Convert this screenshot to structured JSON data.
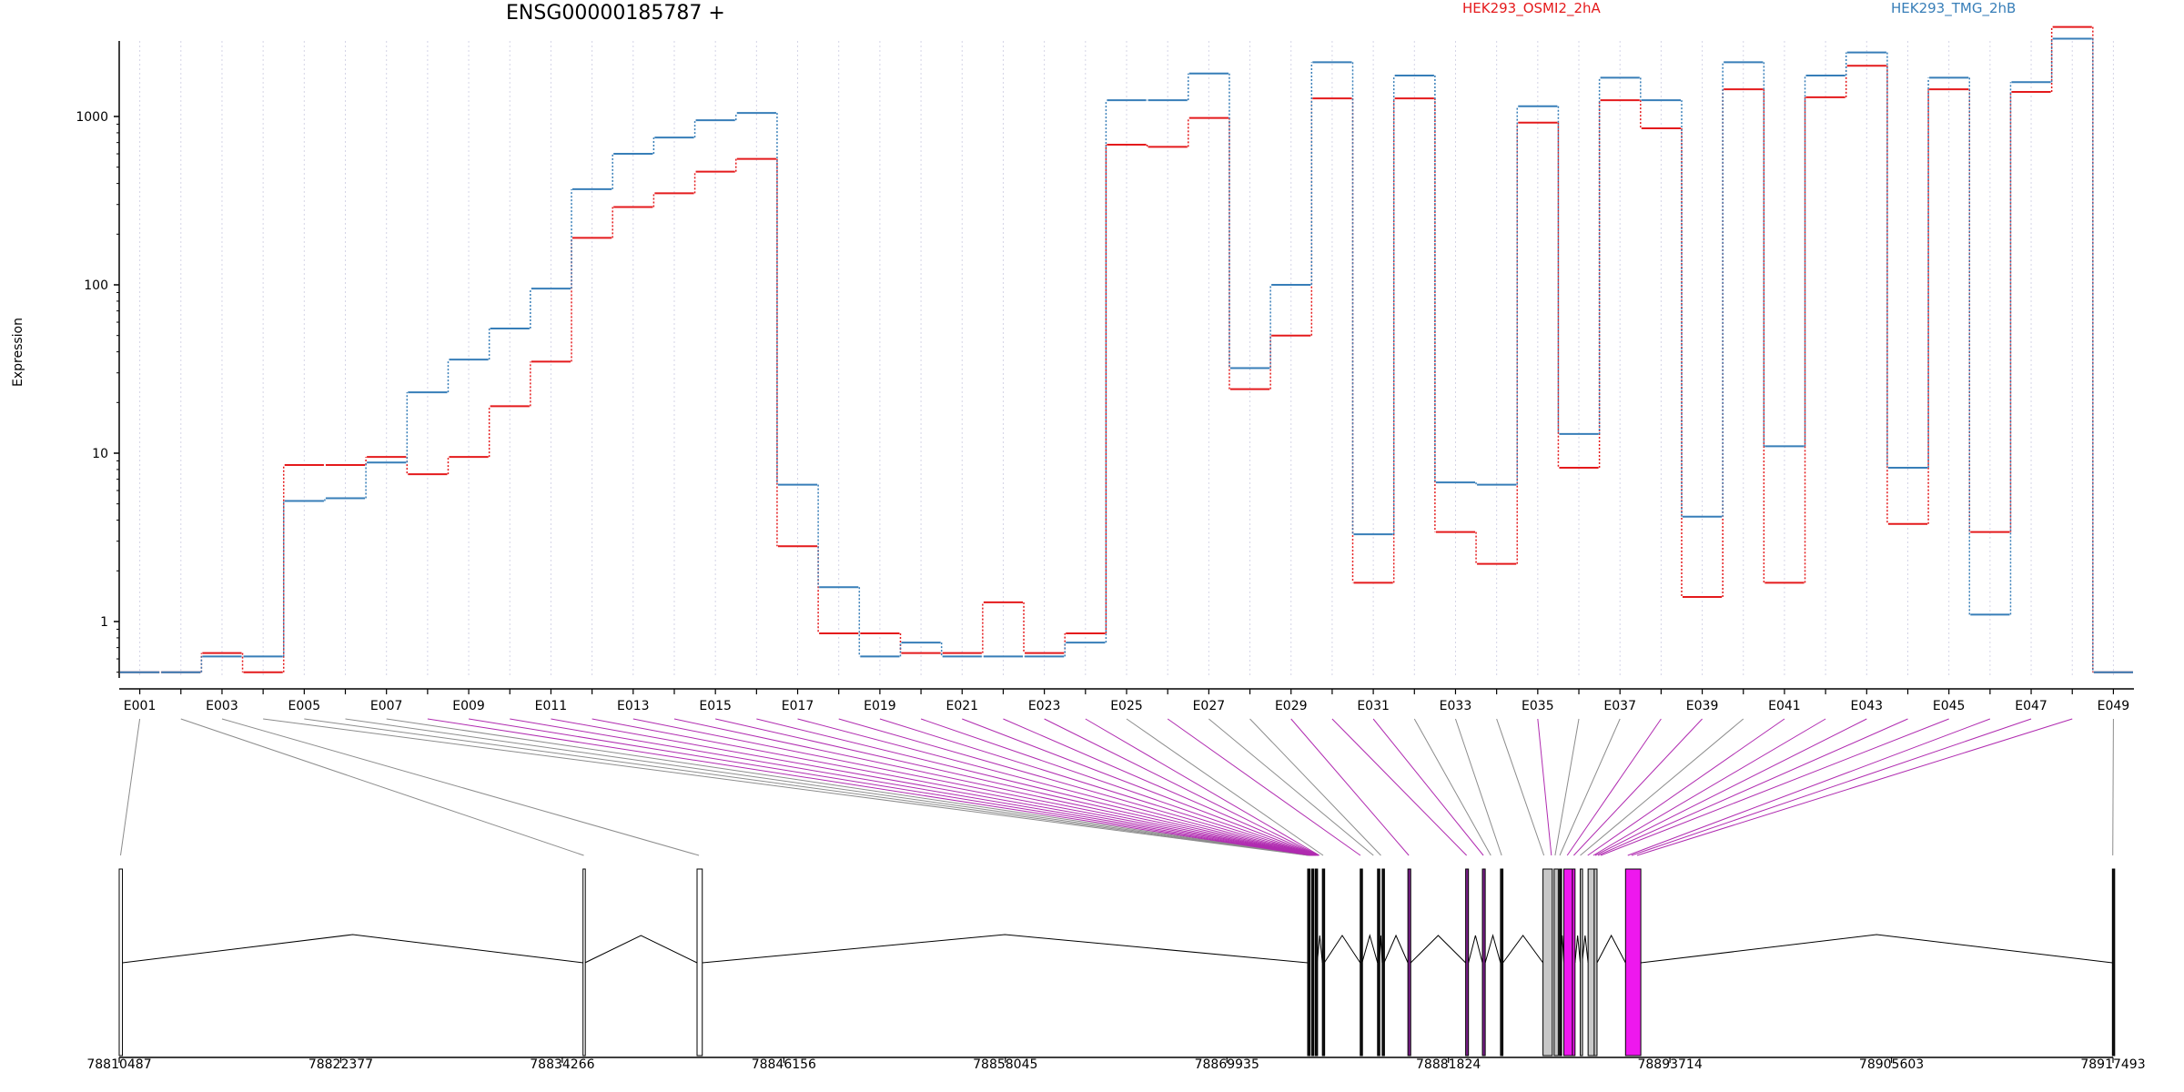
{
  "chart_data": {
    "type": "line",
    "title": "ENSG00000185787 +",
    "ylabel": "Expression",
    "xlabel": "",
    "yscale": "log",
    "ylim": [
      0.5,
      4000
    ],
    "yticks": [
      1,
      10,
      100,
      1000
    ],
    "ytick_labels": [
      "1",
      "10",
      "100",
      "1000"
    ],
    "grid": "vertical dashed at each exon",
    "legend_position": "top",
    "categories": [
      "E001",
      "E002",
      "E003",
      "E004",
      "E005",
      "E006",
      "E007",
      "E008",
      "E009",
      "E010",
      "E011",
      "E012",
      "E013",
      "E014",
      "E015",
      "E016",
      "E017",
      "E018",
      "E019",
      "E020",
      "E021",
      "E022",
      "E023",
      "E024",
      "E025",
      "E026",
      "E027",
      "E028",
      "E029",
      "E030",
      "E031",
      "E032",
      "E033",
      "E034",
      "E035",
      "E036",
      "E037",
      "E038",
      "E039",
      "E040",
      "E041",
      "E042",
      "E043",
      "E044",
      "E045",
      "E046",
      "E047",
      "E048",
      "E049"
    ],
    "xtick_labels": [
      "E001",
      "E003",
      "E005",
      "E007",
      "E009",
      "E011",
      "E013",
      "E015",
      "E017",
      "E019",
      "E021",
      "E023",
      "E025",
      "E027",
      "E029",
      "E031",
      "E033",
      "E035",
      "E037",
      "E039",
      "E041",
      "E043",
      "E045",
      "E047",
      "E049"
    ],
    "series": [
      {
        "name": "HEK293_OSMI2_2hA",
        "color": "#e41a1c",
        "values": [
          0.5,
          0.5,
          0.65,
          0.5,
          8.5,
          8.5,
          9.5,
          7.5,
          9.5,
          19,
          35,
          190,
          290,
          350,
          470,
          560,
          2.8,
          0.85,
          0.85,
          0.65,
          0.65,
          1.3,
          0.65,
          0.85,
          680,
          660,
          980,
          24,
          50,
          1280,
          1.7,
          1280,
          3.4,
          2.2,
          920,
          8.2,
          1250,
          850,
          1.4,
          1450,
          1.7,
          1300,
          2000,
          3.8,
          1450,
          3.4,
          1400,
          3400,
          0.5
        ]
      },
      {
        "name": "HEK293_TMG_2hB",
        "color": "#377eb8",
        "values": [
          0.5,
          0.5,
          0.62,
          0.62,
          5.2,
          5.4,
          8.8,
          23,
          36,
          55,
          95,
          370,
          600,
          750,
          950,
          1050,
          6.5,
          1.6,
          0.62,
          0.75,
          0.62,
          0.62,
          0.62,
          0.75,
          1250,
          1250,
          1800,
          32,
          100,
          2100,
          3.3,
          1750,
          6.7,
          6.5,
          1150,
          13,
          1700,
          1250,
          4.2,
          2100,
          11,
          1750,
          2400,
          8.2,
          1700,
          1.1,
          1600,
          2900,
          0.5
        ]
      }
    ],
    "gene_model": {
      "coordinate_labels": [
        "78810487",
        "78822377",
        "78834266",
        "78846156",
        "78858045",
        "78869935",
        "78881824",
        "78893714",
        "78905603",
        "78917493"
      ],
      "exons": [
        {
          "start": 78810487,
          "end": 78810660,
          "color": "white"
        },
        {
          "start": 78835380,
          "end": 78835480,
          "color": "white"
        },
        {
          "start": 78841500,
          "end": 78841780,
          "color": "white"
        },
        {
          "start": 78874270,
          "end": 78874380,
          "color": "black"
        },
        {
          "start": 78874480,
          "end": 78874580,
          "color": "black"
        },
        {
          "start": 78874680,
          "end": 78874780,
          "color": "black"
        },
        {
          "start": 78875060,
          "end": 78875160,
          "color": "black"
        },
        {
          "start": 78877090,
          "end": 78877190,
          "color": "black"
        },
        {
          "start": 78878020,
          "end": 78878120,
          "color": "black"
        },
        {
          "start": 78878270,
          "end": 78878370,
          "color": "black"
        },
        {
          "start": 78879650,
          "end": 78879800,
          "color": "purple"
        },
        {
          "start": 78882750,
          "end": 78882900,
          "color": "purple"
        },
        {
          "start": 78883650,
          "end": 78883800,
          "color": "purple"
        },
        {
          "start": 78884620,
          "end": 78884750,
          "color": "black"
        },
        {
          "start": 78886900,
          "end": 78887400,
          "color": "grey"
        },
        {
          "start": 78887500,
          "end": 78887720,
          "color": "grey"
        },
        {
          "start": 78887780,
          "end": 78887850,
          "color": "black"
        },
        {
          "start": 78888020,
          "end": 78888480,
          "color": "magenta"
        },
        {
          "start": 78888480,
          "end": 78888620,
          "color": "magenta"
        },
        {
          "start": 78888900,
          "end": 78889000,
          "color": "grey"
        },
        {
          "start": 78889320,
          "end": 78889650,
          "color": "grey"
        },
        {
          "start": 78889650,
          "end": 78889800,
          "color": "grey"
        },
        {
          "start": 78891330,
          "end": 78892150,
          "color": "magenta"
        },
        {
          "start": 78917460,
          "end": 78917493,
          "color": "black"
        }
      ],
      "exon_bin_targets": [
        78810560,
        78835420,
        78841600,
        78874300,
        78874330,
        78874360,
        78874390,
        78874420,
        78874450,
        78874480,
        78874510,
        78874540,
        78874570,
        78874600,
        78874630,
        78874660,
        78874690,
        78874720,
        78874750,
        78874780,
        78874810,
        78874840,
        78874870,
        78874900,
        78875100,
        78877100,
        78877800,
        78878200,
        78879700,
        78882800,
        78883700,
        78884100,
        78884680,
        78886950,
        78887350,
        78887550,
        78887800,
        78888200,
        78888550,
        78888900,
        78889300,
        78889600,
        78889700,
        78889850,
        78890000,
        78891450,
        78891650,
        78891950,
        78917480
      ],
      "bin_highlight": [
        false,
        false,
        false,
        false,
        false,
        false,
        false,
        true,
        true,
        true,
        true,
        true,
        true,
        true,
        true,
        true,
        true,
        true,
        true,
        true,
        true,
        true,
        true,
        true,
        false,
        true,
        false,
        false,
        true,
        true,
        true,
        false,
        false,
        false,
        true,
        false,
        false,
        true,
        true,
        false,
        true,
        true,
        true,
        true,
        true,
        true,
        true,
        true,
        false
      ]
    }
  }
}
